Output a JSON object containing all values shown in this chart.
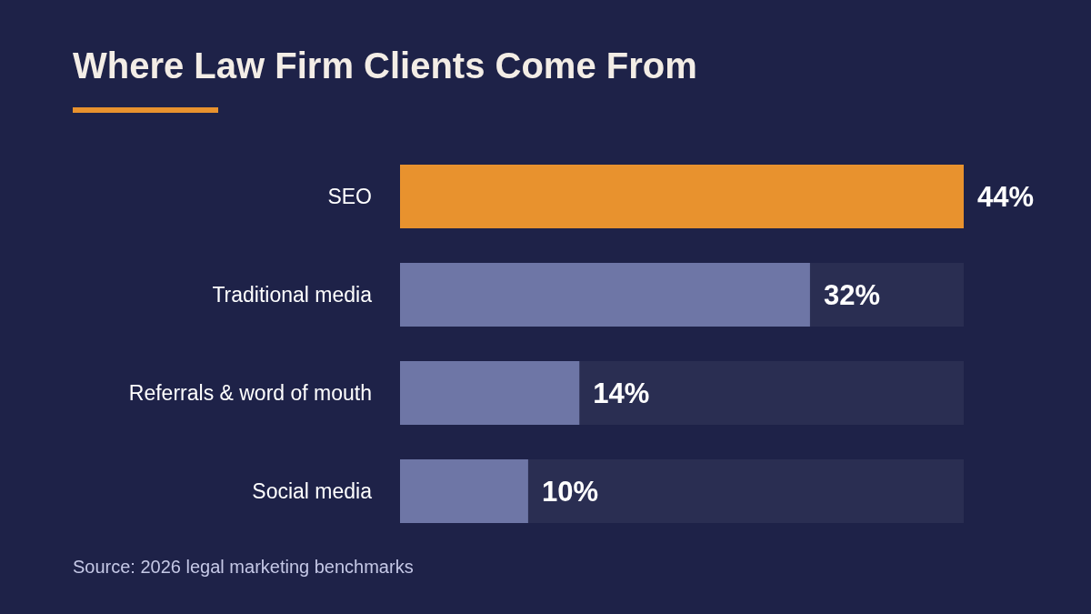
{
  "chart_data": {
    "type": "bar",
    "orientation": "horizontal",
    "title": "Where Law Firm Clients Come From",
    "categories": [
      "SEO",
      "Traditional media",
      "Referrals & word of mouth",
      "Social media"
    ],
    "values": [
      44,
      32,
      14,
      10
    ],
    "colors": [
      "#e8922e",
      "#6e76a6",
      "#6e76a6",
      "#6e76a6"
    ],
    "value_labels": [
      "44%",
      "32%",
      "14%",
      "10%"
    ],
    "annotations": [
      "Source: 2026 legal marketing benchmarks"
    ]
  }
}
